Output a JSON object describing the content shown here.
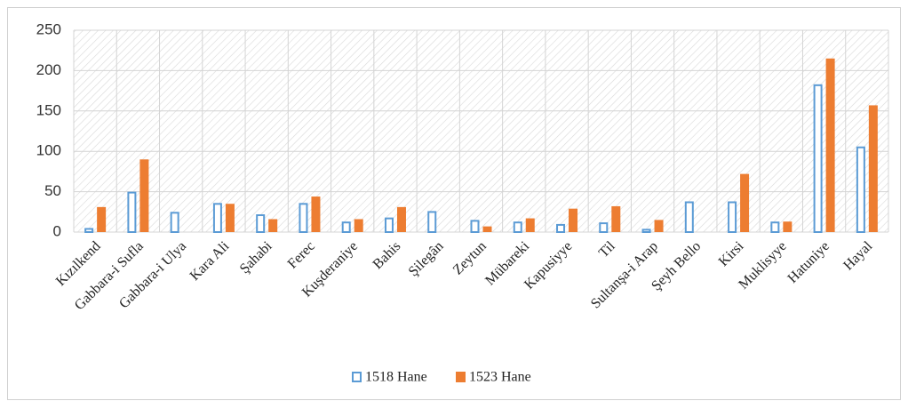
{
  "chart_data": {
    "type": "bar",
    "categories": [
      "Kızılkend",
      "Gabbara-i Sufla",
      "Gabbara-i Ulya",
      "Kara Ali",
      "Şahabi",
      "Ferec",
      "Kuşderaniye",
      "Bahis",
      "Şilegân",
      "Zeytun",
      "Mübareki",
      "Kapusiyye",
      "Til",
      "Sultanşa-i Arap",
      "Şeyh Bello",
      "Kirsi",
      "Muklisyye",
      "Hatuniye",
      "Hayal"
    ],
    "series": [
      {
        "name": "1518 Hane",
        "color": "#5b9bd5",
        "values": [
          5,
          50,
          25,
          36,
          22,
          36,
          13,
          18,
          26,
          15,
          13,
          10,
          12,
          4,
          38,
          38,
          13,
          183,
          106
        ]
      },
      {
        "name": "1523 Hane",
        "color": "#ed7d31",
        "values": [
          31,
          90,
          null,
          35,
          16,
          44,
          16,
          31,
          null,
          7,
          17,
          29,
          32,
          15,
          null,
          72,
          13,
          215,
          157
        ]
      }
    ],
    "ylim": [
      0,
      250
    ],
    "yticks": [
      0,
      50,
      100,
      150,
      200,
      250
    ],
    "grid": true,
    "legend": "bottom"
  }
}
